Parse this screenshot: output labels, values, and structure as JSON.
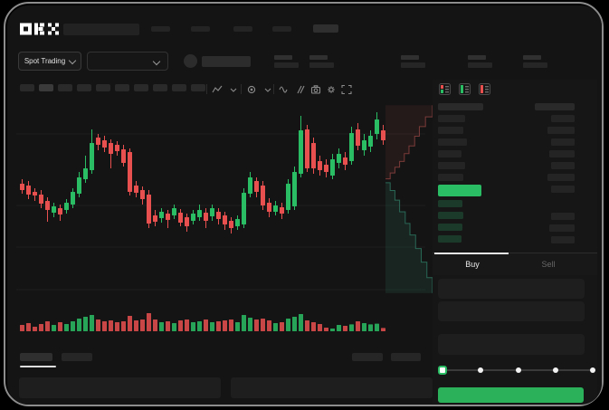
{
  "app": {
    "brand": "OKX"
  },
  "nav": {
    "search_block": true,
    "menu_placeholder_count": 4,
    "action_block": true
  },
  "market_header": {
    "market_mode": {
      "label": "Spot Trading"
    },
    "pair_dropdown_value": "",
    "coin_icon_placeholder": true,
    "stat_placeholder_count": 5
  },
  "chart_toolbar": {
    "timeframe_placeholder_count": 10,
    "active_timeframe_index": 1,
    "icons": [
      "chart-style-icon",
      "chevron-down-icon",
      "indicator-icon",
      "chevron-down-icon",
      "wave-icon",
      "draw-icon",
      "camera-icon",
      "settings-icon",
      "fullscreen-icon"
    ]
  },
  "orderbook": {
    "view_mode_icons": [
      "book-all-icon",
      "book-bids-icon",
      "book-asks-icon"
    ],
    "left_header_placeholder": true,
    "right_header_placeholder": true,
    "asks_depth": [
      30,
      28,
      32,
      26,
      30,
      28
    ],
    "bids_depth": [
      27,
      28,
      27,
      26
    ],
    "right_rows_depth": [
      26,
      30,
      26,
      28,
      26,
      30,
      26,
      26,
      28,
      26
    ],
    "last_price_direction": "up"
  },
  "trade_panel": {
    "tabs": [
      {
        "label": "Buy",
        "active": true
      },
      {
        "label": "Sell",
        "active": false
      }
    ],
    "input_placeholder_count": 3,
    "slider": {
      "stops": 5,
      "selected_index": 0
    },
    "submit_button": {
      "label": "",
      "style": "buy-green"
    }
  },
  "bottom_panel": {
    "tab_placeholder_count": 2,
    "active_tab_index": 0,
    "right_placeholder_count": 2,
    "content_placeholder_count": 2
  },
  "colors": {
    "candle_green": "#2abd64",
    "candle_red": "#e8504f",
    "price_block_green": "#2abd64",
    "buy_button_green": "#2ab159",
    "bid_row_green": "#1c3a2a",
    "depth_ask_line": "#c95a54",
    "depth_bid_line": "#3aa586",
    "tab_indicator": "#e8e8e8"
  },
  "chart_data": {
    "type": "candlestick",
    "title": "",
    "xlabel": "",
    "ylabel": "",
    "note": "No axis tick labels are visible in the screenshot; OHLC values are estimated on a relative 0-110 price scale read from candle pixel positions.",
    "ylim": [
      36,
      110
    ],
    "candles": [
      [
        68.5,
        71,
        63,
        65
      ],
      [
        67.5,
        70,
        60,
        62.5
      ],
      [
        64,
        66,
        59,
        62
      ],
      [
        62.5,
        65,
        55,
        57.5
      ],
      [
        59,
        61,
        47.5,
        54
      ],
      [
        52.5,
        58,
        50,
        56
      ],
      [
        55,
        57,
        48,
        51.5
      ],
      [
        54,
        60,
        52,
        58
      ],
      [
        57,
        66,
        55,
        64
      ],
      [
        63,
        75,
        61,
        72
      ],
      [
        71,
        84,
        69,
        77
      ],
      [
        76,
        98.5,
        74,
        91
      ],
      [
        94,
        96,
        87,
        90
      ],
      [
        92.5,
        95,
        86,
        88.5
      ],
      [
        91,
        93,
        77,
        85
      ],
      [
        90,
        92,
        84,
        86.5
      ],
      [
        87.5,
        90,
        78,
        80
      ],
      [
        86,
        88,
        62,
        64
      ],
      [
        67.5,
        70,
        61,
        63.5
      ],
      [
        65,
        67,
        57,
        60
      ],
      [
        62.5,
        65,
        44,
        46.5
      ],
      [
        51,
        54,
        45,
        47.5
      ],
      [
        49.5,
        55,
        47,
        53
      ],
      [
        52,
        54,
        44,
        48.5
      ],
      [
        51,
        57,
        49,
        55
      ],
      [
        52.5,
        54.5,
        45,
        47
      ],
      [
        50,
        52,
        42,
        45
      ],
      [
        48,
        54,
        46,
        52
      ],
      [
        50,
        57,
        48,
        54
      ],
      [
        52.5,
        55,
        44,
        48
      ],
      [
        50.5,
        57,
        48,
        55
      ],
      [
        53,
        55,
        46,
        49
      ],
      [
        51,
        53,
        43,
        46
      ],
      [
        48,
        50,
        41,
        44
      ],
      [
        45,
        51,
        43,
        49
      ],
      [
        46,
        66,
        44,
        63.5
      ],
      [
        63,
        75,
        61,
        72
      ],
      [
        70,
        72,
        61,
        64
      ],
      [
        67.5,
        70,
        54,
        56.5
      ],
      [
        58,
        60.5,
        50,
        53
      ],
      [
        53,
        59,
        51,
        56.5
      ],
      [
        55.5,
        58,
        49,
        52
      ],
      [
        54,
        71,
        52,
        68.5
      ],
      [
        56,
        78,
        54,
        75
      ],
      [
        74,
        106,
        72,
        98
      ],
      [
        98.5,
        101,
        75,
        77
      ],
      [
        91,
        94,
        74,
        77
      ],
      [
        81,
        84,
        73,
        76
      ],
      [
        79,
        82,
        72,
        75
      ],
      [
        73,
        85,
        71,
        82
      ],
      [
        80,
        88,
        77,
        85
      ],
      [
        83,
        86,
        76,
        79
      ],
      [
        81,
        100,
        79,
        96.5
      ],
      [
        98.5,
        102,
        87,
        89.5
      ],
      [
        87,
        96,
        84,
        92.5
      ],
      [
        89,
        98,
        86,
        95
      ],
      [
        96,
        108,
        93,
        104
      ],
      [
        98,
        101,
        90,
        92.5
      ]
    ],
    "volume": [
      35,
      45,
      25,
      40,
      55,
      35,
      50,
      40,
      55,
      70,
      80,
      90,
      65,
      55,
      60,
      50,
      55,
      85,
      60,
      65,
      100,
      65,
      50,
      55,
      45,
      60,
      65,
      50,
      55,
      65,
      50,
      55,
      60,
      65,
      50,
      90,
      75,
      65,
      70,
      60,
      45,
      50,
      70,
      80,
      95,
      60,
      50,
      40,
      20,
      15,
      35,
      30,
      38,
      55,
      45,
      38,
      42,
      18
    ],
    "depth": {
      "asks": [
        [
          0,
          0.4
        ],
        [
          0.1,
          0.37
        ],
        [
          0.2,
          0.34
        ],
        [
          0.3,
          0.31
        ],
        [
          0.4,
          0.27
        ],
        [
          0.5,
          0.23
        ],
        [
          0.62,
          0.18
        ],
        [
          0.72,
          0.13
        ],
        [
          0.85,
          0.08
        ],
        [
          1,
          0.02
        ]
      ],
      "bids": [
        [
          0,
          0.42
        ],
        [
          0.1,
          0.46
        ],
        [
          0.2,
          0.51
        ],
        [
          0.3,
          0.57
        ],
        [
          0.42,
          0.63
        ],
        [
          0.52,
          0.69
        ],
        [
          0.64,
          0.76
        ],
        [
          0.76,
          0.83
        ],
        [
          0.88,
          0.91
        ],
        [
          1,
          0.99
        ]
      ]
    },
    "gridlines_y_relative": [
      96,
      56.5,
      33.5,
      10
    ],
    "legend_position": "none",
    "grid": "faint-horizontal"
  }
}
